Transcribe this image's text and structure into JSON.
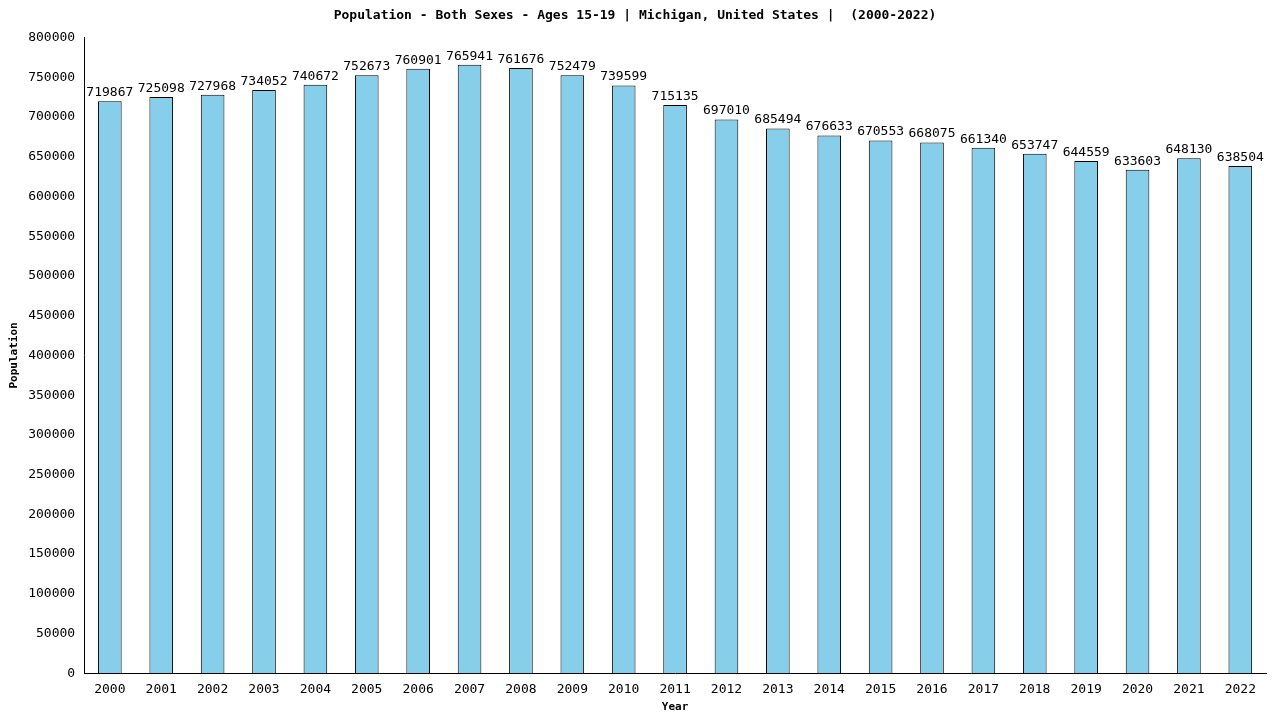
{
  "chart_data": {
    "type": "bar",
    "title": "Population - Both Sexes - Ages 15-19 | Michigan, United States |  (2000-2022)",
    "x_label": "Year",
    "y_label": "Population",
    "categories": [
      "2000",
      "2001",
      "2002",
      "2003",
      "2004",
      "2005",
      "2006",
      "2007",
      "2008",
      "2009",
      "2010",
      "2011",
      "2012",
      "2013",
      "2014",
      "2015",
      "2016",
      "2017",
      "2018",
      "2019",
      "2020",
      "2021",
      "2022"
    ],
    "values": [
      719867,
      725098,
      727968,
      734052,
      740672,
      752673,
      760901,
      765941,
      761676,
      752479,
      739599,
      715135,
      697010,
      685494,
      676633,
      670553,
      668075,
      661340,
      653747,
      644559,
      633603,
      648130,
      638504
    ],
    "color": "#87ceeb",
    "ylim": [
      0,
      800000
    ],
    "yticks": [
      0,
      50000,
      100000,
      150000,
      200000,
      250000,
      300000,
      350000,
      400000,
      450000,
      500000,
      550000,
      600000,
      650000,
      700000,
      750000,
      800000
    ],
    "grid": false,
    "data_labels": true
  }
}
